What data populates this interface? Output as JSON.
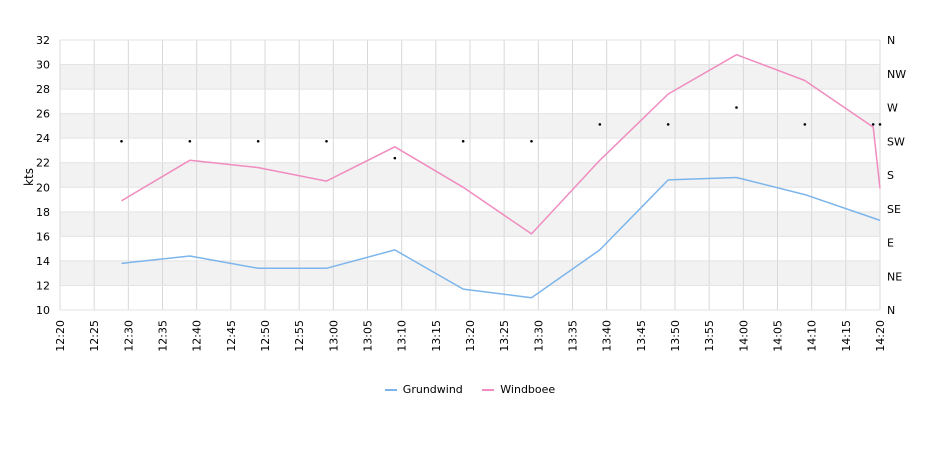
{
  "chart_data": {
    "type": "line",
    "ylabel": "kts",
    "ylim": [
      10,
      32
    ],
    "yticks": [
      "10",
      "12",
      "14",
      "16",
      "18",
      "20",
      "22",
      "24",
      "26",
      "28",
      "30",
      "32"
    ],
    "xlim": [
      "12:20",
      "14:20"
    ],
    "xticks": [
      "12:20",
      "12:25",
      "12:30",
      "12:35",
      "12:40",
      "12:45",
      "12:50",
      "12:55",
      "13:00",
      "13:05",
      "13:10",
      "13:15",
      "13:20",
      "13:25",
      "13:30",
      "13:35",
      "13:40",
      "13:45",
      "13:50",
      "13:55",
      "14:00",
      "14:05",
      "14:10",
      "14:15",
      "14:20"
    ],
    "right_axis": {
      "labels": [
        "N",
        "NE",
        "E",
        "SE",
        "S",
        "SW",
        "W",
        "NW",
        "N"
      ],
      "range_degrees": [
        0,
        360
      ]
    },
    "series": [
      {
        "name": "Grundwind",
        "color": "#7cb5ec",
        "points": [
          [
            "12:29",
            13.8
          ],
          [
            "12:39",
            14.4
          ],
          [
            "12:49",
            13.4
          ],
          [
            "12:59",
            13.4
          ],
          [
            "13:09",
            14.9
          ],
          [
            "13:19",
            11.7
          ],
          [
            "13:29",
            11.0
          ],
          [
            "13:39",
            14.9
          ],
          [
            "13:49",
            20.6
          ],
          [
            "13:59",
            20.8
          ],
          [
            "14:09",
            19.4
          ],
          [
            "14:19",
            17.5
          ],
          [
            "14:20",
            17.3
          ]
        ]
      },
      {
        "name": "Windboee",
        "color": "#f08cc0",
        "points": [
          [
            "12:29",
            18.9
          ],
          [
            "12:39",
            22.2
          ],
          [
            "12:49",
            21.6
          ],
          [
            "12:59",
            20.5
          ],
          [
            "13:09",
            23.3
          ],
          [
            "13:19",
            20.0
          ],
          [
            "13:29",
            16.2
          ],
          [
            "13:39",
            22.2
          ],
          [
            "13:49",
            27.6
          ],
          [
            "13:59",
            30.8
          ],
          [
            "14:09",
            28.7
          ],
          [
            "14:19",
            24.9
          ],
          [
            "14:20",
            19.9
          ]
        ]
      }
    ],
    "direction_points": [
      [
        "12:29",
        225
      ],
      [
        "12:39",
        225
      ],
      [
        "12:49",
        225
      ],
      [
        "12:59",
        225
      ],
      [
        "13:09",
        202.5
      ],
      [
        "13:19",
        225
      ],
      [
        "13:29",
        225
      ],
      [
        "13:39",
        247.5
      ],
      [
        "13:49",
        247.5
      ],
      [
        "13:59",
        270
      ],
      [
        "14:09",
        247.5
      ],
      [
        "14:19",
        247.5
      ],
      [
        "14:20",
        247.5
      ]
    ],
    "legend_position": "bottom-center",
    "grid": true
  }
}
